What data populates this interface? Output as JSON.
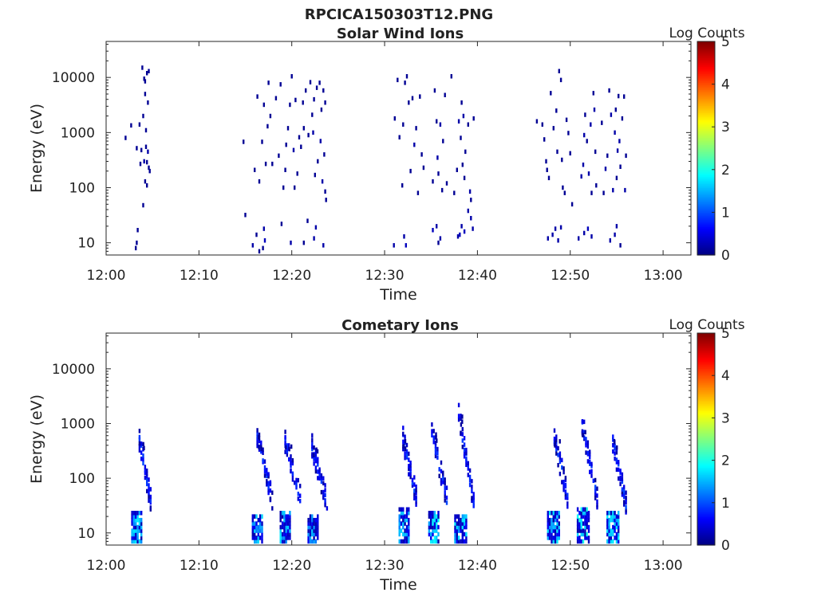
{
  "figure_title": "RPCICA150303T12.PNG",
  "chart_data": [
    {
      "type": "heatmap",
      "title": "Solar Wind Ions",
      "xlabel": "Time",
      "ylabel": "Energy (eV)",
      "y_scale": "log",
      "xlim": [
        "12:00",
        "13:03"
      ],
      "ylim": [
        6,
        45000
      ],
      "x_ticks": [
        "12:00",
        "12:10",
        "12:20",
        "12:30",
        "12:40",
        "12:50",
        "13:00"
      ],
      "y_ticks": [
        "10",
        "100",
        "1000",
        "10000"
      ],
      "colorbar": {
        "label": "Log Counts",
        "min": 0,
        "max": 5,
        "ticks": [
          "0",
          "1",
          "2",
          "3",
          "4",
          "5"
        ],
        "colormap": "jet"
      },
      "cells": [
        [
          2.1,
          800,
          0.1
        ],
        [
          2.7,
          1350,
          0.1
        ],
        [
          3.3,
          520,
          0.1
        ],
        [
          3.6,
          1400,
          0.1
        ],
        [
          3.7,
          270,
          0.1
        ],
        [
          3.8,
          480,
          0.1
        ],
        [
          3.9,
          15000,
          0.1
        ],
        [
          4.0,
          2000,
          0.1
        ],
        [
          4.1,
          300,
          0.2
        ],
        [
          4.1,
          9500,
          0.1
        ],
        [
          4.2,
          8500,
          0.1
        ],
        [
          4.2,
          5000,
          0.1
        ],
        [
          4.3,
          1100,
          0.1
        ],
        [
          4.3,
          550,
          0.1
        ],
        [
          4.4,
          290,
          0.1
        ],
        [
          4.4,
          12000,
          0.1
        ],
        [
          4.5,
          3500,
          0.1
        ],
        [
          4.5,
          450,
          0.2
        ],
        [
          4.6,
          230,
          0.1
        ],
        [
          4.6,
          13000,
          0.1
        ],
        [
          4.7,
          200,
          0.1
        ],
        [
          4.2,
          130,
          0.1
        ],
        [
          4.4,
          110,
          0.1
        ],
        [
          4.0,
          48,
          0.1
        ],
        [
          14.8,
          680,
          0.1
        ],
        [
          15.0,
          32,
          0.1
        ],
        [
          16.0,
          210,
          0.1
        ],
        [
          16.3,
          4500,
          0.1
        ],
        [
          16.5,
          130,
          0.1
        ],
        [
          16.8,
          680,
          0.1
        ],
        [
          17.0,
          3200,
          0.1
        ],
        [
          17.2,
          270,
          0.1
        ],
        [
          17.4,
          1300,
          0.1
        ],
        [
          17.5,
          8000,
          0.1
        ],
        [
          17.7,
          2000,
          0.1
        ],
        [
          17.9,
          270,
          0.1
        ],
        [
          18.3,
          4200,
          0.1
        ],
        [
          18.6,
          380,
          0.1
        ],
        [
          18.8,
          7500,
          0.1
        ],
        [
          19.1,
          100,
          0.1
        ],
        [
          19.3,
          210,
          0.1
        ],
        [
          19.4,
          600,
          0.1
        ],
        [
          19.6,
          1200,
          0.1
        ],
        [
          19.8,
          3200,
          0.1
        ],
        [
          20.0,
          10500,
          0.1
        ],
        [
          20.2,
          480,
          0.2
        ],
        [
          20.3,
          100,
          0.1
        ],
        [
          20.4,
          3900,
          0.1
        ],
        [
          20.6,
          180,
          0.1
        ],
        [
          20.8,
          820,
          0.1
        ],
        [
          21.0,
          550,
          0.1
        ],
        [
          21.2,
          3500,
          0.1
        ],
        [
          21.3,
          1200,
          0.1
        ],
        [
          21.5,
          5800,
          0.1
        ],
        [
          21.7,
          25,
          0.1
        ],
        [
          21.8,
          900,
          0.1
        ],
        [
          22.0,
          8200,
          0.1
        ],
        [
          22.2,
          2100,
          0.1
        ],
        [
          22.3,
          1000,
          0.2
        ],
        [
          22.4,
          4000,
          0.1
        ],
        [
          22.5,
          170,
          0.1
        ],
        [
          22.7,
          6500,
          0.1
        ],
        [
          22.8,
          300,
          0.1
        ],
        [
          23.0,
          8000,
          0.1
        ],
        [
          23.1,
          700,
          0.2
        ],
        [
          23.2,
          2600,
          0.1
        ],
        [
          23.3,
          130,
          0.2
        ],
        [
          23.4,
          5800,
          0.1
        ],
        [
          23.5,
          400,
          0.1
        ],
        [
          23.6,
          85,
          0.1
        ],
        [
          23.6,
          3500,
          0.1
        ],
        [
          23.7,
          60,
          0.1
        ],
        [
          31.1,
          1800,
          0.1
        ],
        [
          31.4,
          9000,
          0.1
        ],
        [
          31.6,
          820,
          0.1
        ],
        [
          31.9,
          110,
          0.1
        ],
        [
          32.0,
          1400,
          0.1
        ],
        [
          32.2,
          8000,
          0.1
        ],
        [
          32.4,
          10500,
          0.1
        ],
        [
          32.6,
          3500,
          0.1
        ],
        [
          32.8,
          200,
          0.1
        ],
        [
          33.0,
          4200,
          0.1
        ],
        [
          33.2,
          600,
          0.2
        ],
        [
          33.4,
          1200,
          0.1
        ],
        [
          33.6,
          80,
          0.1
        ],
        [
          33.8,
          4500,
          0.1
        ],
        [
          34.0,
          400,
          0.1
        ],
        [
          34.2,
          230,
          0.1
        ],
        [
          35.2,
          130,
          0.1
        ],
        [
          35.4,
          5800,
          0.1
        ],
        [
          35.6,
          1600,
          0.1
        ],
        [
          35.7,
          350,
          0.2
        ],
        [
          35.8,
          180,
          0.1
        ],
        [
          36.0,
          1400,
          0.2
        ],
        [
          36.2,
          90,
          0.1
        ],
        [
          36.3,
          700,
          0.1
        ],
        [
          36.5,
          4800,
          0.1
        ],
        [
          36.7,
          120,
          0.1
        ],
        [
          37.2,
          10500,
          0.1
        ],
        [
          37.5,
          80,
          0.1
        ],
        [
          37.8,
          210,
          0.1
        ],
        [
          38.0,
          1600,
          0.2
        ],
        [
          38.2,
          800,
          0.1
        ],
        [
          38.3,
          3500,
          0.1
        ],
        [
          38.4,
          260,
          0.1
        ],
        [
          38.5,
          2000,
          0.2
        ],
        [
          38.6,
          150,
          0.1
        ],
        [
          38.7,
          450,
          0.1
        ],
        [
          39.0,
          1400,
          0.1
        ],
        [
          39.2,
          85,
          0.2
        ],
        [
          39.3,
          60,
          0.1
        ],
        [
          39.6,
          1800,
          0.1
        ],
        [
          46.4,
          1600,
          0.1
        ],
        [
          47.0,
          1400,
          0.1
        ],
        [
          47.2,
          750,
          0.1
        ],
        [
          47.4,
          300,
          0.1
        ],
        [
          47.5,
          210,
          0.1
        ],
        [
          47.7,
          150,
          0.1
        ],
        [
          47.9,
          5200,
          0.1
        ],
        [
          48.2,
          1200,
          0.1
        ],
        [
          48.5,
          2500,
          0.1
        ],
        [
          48.6,
          450,
          0.1
        ],
        [
          48.8,
          13000,
          0.1
        ],
        [
          49.0,
          9000,
          0.1
        ],
        [
          49.1,
          320,
          0.1
        ],
        [
          49.2,
          100,
          0.1
        ],
        [
          49.4,
          80,
          0.1
        ],
        [
          49.6,
          1700,
          0.1
        ],
        [
          49.8,
          980,
          0.1
        ],
        [
          50.0,
          420,
          0.1
        ],
        [
          50.2,
          50,
          0.1
        ],
        [
          51.2,
          160,
          0.2
        ],
        [
          51.4,
          260,
          0.2
        ],
        [
          51.5,
          900,
          0.2
        ],
        [
          51.6,
          2100,
          0.1
        ],
        [
          51.8,
          700,
          0.1
        ],
        [
          52.0,
          180,
          0.2
        ],
        [
          52.2,
          1400,
          0.2
        ],
        [
          52.3,
          80,
          0.1
        ],
        [
          52.5,
          5200,
          0.1
        ],
        [
          52.6,
          2600,
          0.2
        ],
        [
          52.7,
          450,
          0.1
        ],
        [
          52.8,
          110,
          0.1
        ],
        [
          53.4,
          1500,
          0.1
        ],
        [
          53.6,
          80,
          0.1
        ],
        [
          53.8,
          220,
          0.2
        ],
        [
          54.0,
          380,
          0.1
        ],
        [
          54.2,
          5800,
          0.1
        ],
        [
          54.4,
          2100,
          0.2
        ],
        [
          54.6,
          90,
          0.2
        ],
        [
          54.8,
          1000,
          0.2
        ],
        [
          54.9,
          2600,
          0.1
        ],
        [
          55.0,
          150,
          0.1
        ],
        [
          55.1,
          470,
          0.2
        ],
        [
          55.2,
          4600,
          0.1
        ],
        [
          55.3,
          700,
          0.2
        ],
        [
          55.4,
          240,
          0.1
        ],
        [
          55.6,
          1800,
          0.1
        ],
        [
          55.8,
          4500,
          0.1
        ],
        [
          55.9,
          90,
          0.2
        ],
        [
          56.0,
          380,
          0.1
        ],
        [
          3.2,
          8,
          0.1
        ],
        [
          3.3,
          10,
          0.1
        ],
        [
          3.4,
          17,
          0.1
        ],
        [
          15.8,
          9,
          0.2
        ],
        [
          16.2,
          14,
          0.1
        ],
        [
          16.5,
          7,
          0.1
        ],
        [
          16.9,
          8,
          0.1
        ],
        [
          17.0,
          18,
          0.2
        ],
        [
          17.1,
          11,
          0.3
        ],
        [
          18.9,
          22,
          0.1
        ],
        [
          19.9,
          10,
          0.2
        ],
        [
          21.3,
          10,
          0.1
        ],
        [
          22.4,
          12,
          0.2
        ],
        [
          22.6,
          19,
          0.2
        ],
        [
          23.4,
          9,
          0.2
        ],
        [
          31.0,
          9,
          0.2
        ],
        [
          32.1,
          13,
          0.2
        ],
        [
          32.3,
          9,
          0.3
        ],
        [
          35.2,
          17,
          0.3
        ],
        [
          35.6,
          20,
          0.2
        ],
        [
          35.8,
          10,
          0.1
        ],
        [
          36.0,
          12,
          0.2
        ],
        [
          37.9,
          13,
          0.2
        ],
        [
          38.1,
          14,
          0.3
        ],
        [
          38.3,
          20,
          0.2
        ],
        [
          38.6,
          16,
          0.3
        ],
        [
          39.0,
          38,
          0.2
        ],
        [
          39.3,
          28,
          0.2
        ],
        [
          39.5,
          18,
          0.2
        ],
        [
          47.6,
          12,
          0.2
        ],
        [
          48.1,
          14,
          0.2
        ],
        [
          48.4,
          18,
          0.2
        ],
        [
          48.7,
          11,
          0.2
        ],
        [
          49.0,
          19,
          0.2
        ],
        [
          50.9,
          12,
          0.2
        ],
        [
          51.5,
          15,
          0.2
        ],
        [
          51.9,
          18,
          0.3
        ],
        [
          52.3,
          13,
          0.2
        ],
        [
          54.3,
          11,
          0.2
        ],
        [
          54.8,
          14,
          0.2
        ],
        [
          55.0,
          20,
          0.2
        ],
        [
          55.4,
          9,
          0.1
        ]
      ]
    },
    {
      "type": "heatmap",
      "title": "Cometary Ions",
      "xlabel": "Time",
      "ylabel": "Energy (eV)",
      "y_scale": "log",
      "xlim": [
        "12:00",
        "13:03"
      ],
      "ylim": [
        6,
        45000
      ],
      "x_ticks": [
        "12:00",
        "12:10",
        "12:20",
        "12:30",
        "12:40",
        "12:50",
        "13:00"
      ],
      "y_ticks": [
        "10",
        "100",
        "1000",
        "10000"
      ],
      "colorbar": {
        "label": "Log Counts",
        "min": 0,
        "max": 5,
        "ticks": [
          "0",
          "1",
          "2",
          "3",
          "4",
          "5"
        ],
        "colormap": "jet"
      },
      "bursts": [
        {
          "t_start": 3.6,
          "t_end": 4.8,
          "e_high": 500,
          "e_low": 40
        },
        {
          "t_start": 16.3,
          "t_end": 18.0,
          "e_high": 580,
          "e_low": 35
        },
        {
          "t_start": 19.3,
          "t_end": 21.0,
          "e_high": 450,
          "e_low": 40
        },
        {
          "t_start": 22.2,
          "t_end": 23.8,
          "e_high": 380,
          "e_low": 35
        },
        {
          "t_start": 32.0,
          "t_end": 33.5,
          "e_high": 520,
          "e_low": 40
        },
        {
          "t_start": 35.1,
          "t_end": 36.8,
          "e_high": 720,
          "e_low": 35
        },
        {
          "t_start": 38.0,
          "t_end": 39.6,
          "e_high": 1500,
          "e_low": 35
        },
        {
          "t_start": 48.3,
          "t_end": 49.8,
          "e_high": 540,
          "e_low": 40
        },
        {
          "t_start": 51.3,
          "t_end": 53.0,
          "e_high": 1000,
          "e_low": 35
        },
        {
          "t_start": 54.6,
          "t_end": 56.0,
          "e_high": 480,
          "e_low": 35
        }
      ],
      "low_energy_clusters": [
        {
          "t_start": 2.8,
          "t_end": 3.8,
          "e_top": 25,
          "value": 1.3
        },
        {
          "t_start": 15.8,
          "t_end": 16.8,
          "e_top": 22,
          "value": 1.2
        },
        {
          "t_start": 18.8,
          "t_end": 19.8,
          "e_top": 25,
          "value": 1.3
        },
        {
          "t_start": 21.8,
          "t_end": 22.8,
          "e_top": 22,
          "value": 1.1
        },
        {
          "t_start": 31.6,
          "t_end": 32.6,
          "e_top": 28,
          "value": 1.2
        },
        {
          "t_start": 34.8,
          "t_end": 35.8,
          "e_top": 25,
          "value": 1.4
        },
        {
          "t_start": 37.6,
          "t_end": 38.8,
          "e_top": 22,
          "value": 1.3
        },
        {
          "t_start": 47.6,
          "t_end": 48.9,
          "e_top": 25,
          "value": 1.3
        },
        {
          "t_start": 50.8,
          "t_end": 52.0,
          "e_top": 28,
          "value": 1.5
        },
        {
          "t_start": 54.0,
          "t_end": 55.2,
          "e_top": 25,
          "value": 1.4
        }
      ]
    }
  ]
}
